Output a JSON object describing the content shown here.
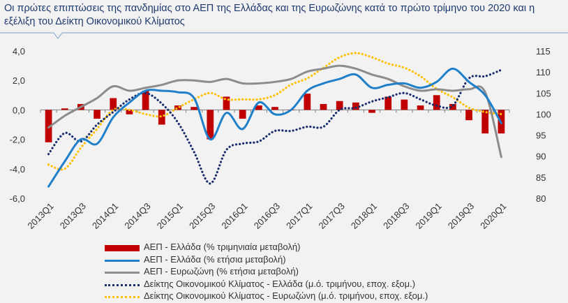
{
  "title": "Οι πρώτες επιπτώσεις της πανδημίας στο ΑΕΠ της Ελλάδας και της Ευρωζώνης κατά το πρώτο τρίμηνο του 2020 και η εξέλιξη του Δείκτη Οικονομικού Κλίματος",
  "colors": {
    "gdp_gr_q": "#c00000",
    "gdp_gr_y": "#1f7fc9",
    "gdp_ez_y": "#8c8c8c",
    "esi_gr": "#1a2e6e",
    "esi_ez": "#ffc000"
  },
  "chart_data": {
    "type": "bar+line",
    "categories": [
      "2013Q1",
      "2013Q2",
      "2013Q3",
      "2013Q4",
      "2014Q1",
      "2014Q2",
      "2014Q3",
      "2014Q4",
      "2015Q1",
      "2015Q2",
      "2015Q3",
      "2015Q4",
      "2016Q1",
      "2016Q2",
      "2016Q3",
      "2016Q4",
      "2017Q1",
      "2017Q2",
      "2017Q3",
      "2017Q4",
      "2018Q1",
      "2018Q2",
      "2018Q3",
      "2018Q4",
      "2019Q1",
      "2019Q2",
      "2019Q3",
      "2019Q4",
      "2020Q1"
    ],
    "x_tick_labels": [
      "2013Q1",
      "2013Q3",
      "2014Q1",
      "2014Q3",
      "2015Q1",
      "2015Q3",
      "2016Q1",
      "2016Q3",
      "2017Q1",
      "2017Q3",
      "2018Q1",
      "2018Q3",
      "2019Q1",
      "2019Q3",
      "2020Q1"
    ],
    "left_axis": {
      "ylim": [
        -6,
        4
      ],
      "ticks": [
        "4,0",
        "2,0",
        "0,0",
        "-2,0",
        "-4,0",
        "-6,0"
      ]
    },
    "right_axis": {
      "ylim": [
        80,
        115
      ],
      "ticks": [
        "115",
        "110",
        "105",
        "100",
        "95",
        "90",
        "85",
        "80"
      ]
    },
    "series": [
      {
        "name": "ΑΕΠ - Ελλάδα (% τριμηνιαία μεταβολή)",
        "axis": "left",
        "type": "bar",
        "values": [
          -2.2,
          0.1,
          0.4,
          -0.6,
          0.8,
          -0.3,
          1.3,
          -1.0,
          0.3,
          0.2,
          -2.0,
          0.9,
          -0.6,
          0.3,
          0.2,
          0.0,
          1.1,
          0.4,
          0.6,
          0.5,
          -0.2,
          0.9,
          0.7,
          0.3,
          1.0,
          0.4,
          -0.7,
          -1.6,
          -1.6
        ]
      },
      {
        "name": "ΑΕΠ - Ελλάδα (% ετήσια μεταβολή)",
        "axis": "left",
        "type": "line",
        "style": "solid",
        "x": [
          0,
          1,
          2,
          3,
          4,
          5,
          6,
          7,
          8,
          9,
          10,
          11,
          12,
          13,
          14,
          15,
          16,
          17,
          18,
          19,
          20,
          21,
          22,
          23,
          24,
          25,
          26,
          27,
          28
        ],
        "values": [
          -5.2,
          -3.5,
          -2.0,
          -2.3,
          -0.5,
          0.5,
          1.3,
          1.3,
          1.2,
          0.8,
          -2.0,
          -0.2,
          -1.3,
          0.5,
          -0.3,
          0.0,
          1.3,
          1.8,
          2.1,
          2.4,
          1.5,
          1.7,
          1.8,
          1.5,
          1.9,
          2.8,
          1.9,
          1.0,
          -0.9
        ]
      },
      {
        "name": "ΑΕΠ - Ευρωζώνη (% ετήσια μεταβολή)",
        "axis": "left",
        "type": "line",
        "style": "solid",
        "x": [
          0,
          1,
          2,
          3,
          4,
          5,
          6,
          7,
          8,
          9,
          10,
          11,
          12,
          13,
          14,
          15,
          16,
          17,
          18,
          19,
          20,
          21,
          22,
          23,
          24,
          25,
          26,
          27,
          28
        ],
        "values": [
          -1.2,
          -0.4,
          0.2,
          0.8,
          1.6,
          1.3,
          1.5,
          1.7,
          2.0,
          2.0,
          1.9,
          2.1,
          1.8,
          1.8,
          1.9,
          2.1,
          2.6,
          2.8,
          3.0,
          2.8,
          2.4,
          2.1,
          1.6,
          1.3,
          1.4,
          1.3,
          1.4,
          1.2,
          -3.2
        ]
      },
      {
        "name": "Δείκτης Οικονομικού Κλίματος - Ελλάδα (μ.ό. τριμήνου, εποχ. εξομ.)",
        "axis": "right",
        "type": "line",
        "style": "dotted",
        "x": [
          0,
          1,
          2,
          3,
          4,
          5,
          6,
          7,
          8,
          9,
          10,
          11,
          12,
          13,
          14,
          15,
          16,
          17,
          18,
          19,
          20,
          21,
          22,
          23,
          24,
          25,
          26,
          27,
          28
        ],
        "values": [
          90.5,
          95.5,
          93.5,
          97.5,
          100.5,
          103.5,
          105.0,
          102.5,
          98.0,
          91.0,
          83.5,
          91.5,
          93.0,
          93.5,
          96.0,
          96.0,
          97.0,
          97.0,
          101.0,
          101.5,
          103.0,
          104.0,
          105.0,
          103.5,
          102.0,
          102.0,
          108.5,
          109.0,
          110.5
        ]
      },
      {
        "name": "Δείκτης Οικονομικού Κλίματος - Ευρωζώνη (μ.ό. τριμήνου, εποχ. εξομ.)",
        "axis": "right",
        "type": "line",
        "style": "dotted",
        "x": [
          0,
          1,
          2,
          3,
          4,
          5,
          6,
          7,
          8,
          9,
          10,
          11,
          12,
          13,
          14,
          15,
          16,
          17,
          18,
          19,
          20,
          21,
          22,
          23,
          24,
          25,
          26,
          27,
          28
        ],
        "values": [
          88.0,
          87.0,
          92.0,
          96.5,
          101.0,
          101.0,
          100.0,
          99.5,
          101.5,
          103.5,
          105.0,
          103.5,
          103.5,
          103.5,
          104.5,
          107.0,
          108.5,
          111.0,
          113.5,
          114.5,
          113.5,
          112.0,
          111.0,
          109.0,
          106.0,
          104.0,
          101.5,
          100.5,
          100.0
        ]
      }
    ],
    "legend_placement": "bottom",
    "grid": false
  },
  "legend": [
    {
      "label": "ΑΕΠ - Ελλάδα (% τριμηνιαία μεταβολή)",
      "kind": "bar",
      "color": "#c00000"
    },
    {
      "label": "ΑΕΠ - Ελλάδα (% ετήσια μεταβολή)",
      "kind": "solid",
      "color": "#1f7fc9"
    },
    {
      "label": "ΑΕΠ - Ευρωζώνη (% ετήσια μεταβολή)",
      "kind": "solid",
      "color": "#8c8c8c"
    },
    {
      "label": "Δείκτης Οικονομικού Κλίματος - Ελλάδα (μ.ό. τριμήνου, εποχ. εξομ.)",
      "kind": "dotted",
      "color": "#1a2e6e"
    },
    {
      "label": "Δείκτης Οικονομικού Κλίματος - Ευρωζώνη (μ.ό. τριμήνου, εποχ. εξομ.)",
      "kind": "dotted",
      "color": "#ffc000"
    }
  ]
}
